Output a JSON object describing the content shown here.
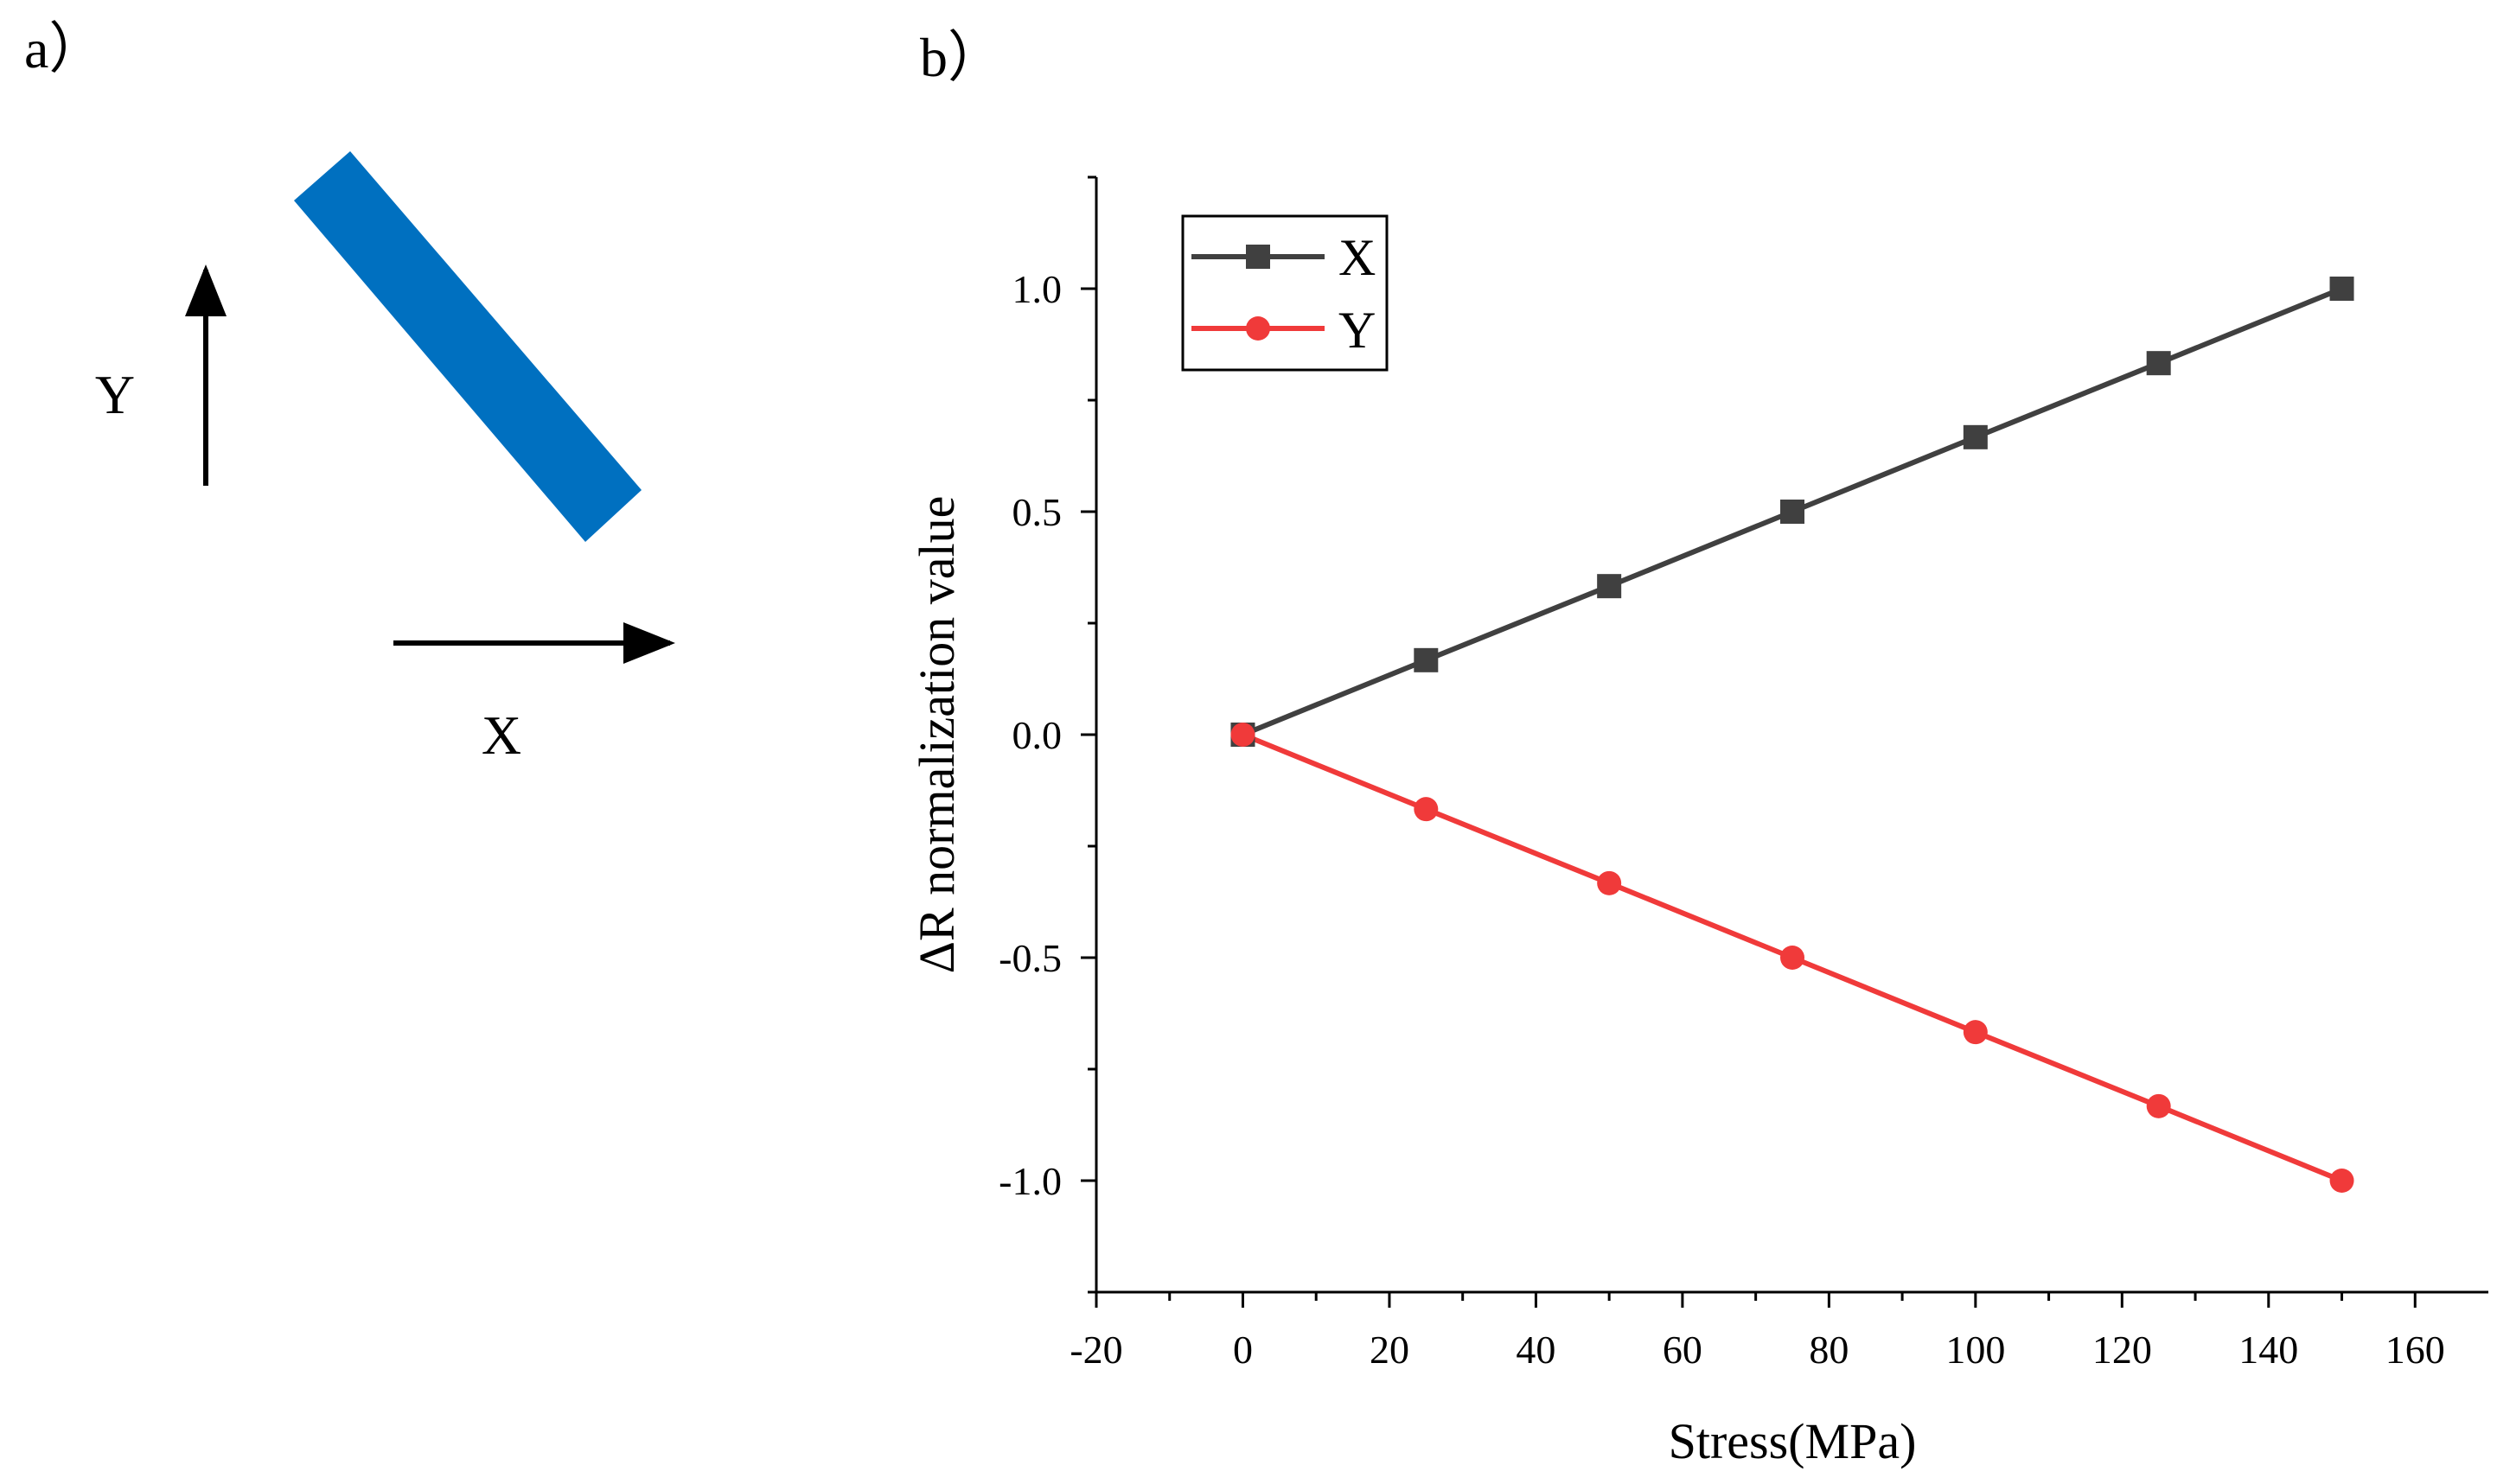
{
  "panel_a": {
    "label": "a）",
    "x_axis_label": "X",
    "y_axis_label": "Y",
    "strip_color": "#0070C0"
  },
  "panel_b": {
    "label": "b）"
  },
  "chart_data": {
    "type": "line",
    "title": "",
    "xlabel": "Stress(MPa)",
    "ylabel": "ΔR normalization value",
    "xlim": [
      -20,
      170
    ],
    "ylim": [
      -1.25,
      1.25
    ],
    "x_ticks": [
      -20,
      0,
      20,
      40,
      60,
      80,
      100,
      120,
      140,
      160
    ],
    "x_tick_labels": [
      "-20",
      "0",
      "20",
      "40",
      "60",
      "80",
      "100",
      "120",
      "140",
      "160"
    ],
    "y_ticks": [
      1.0,
      0.5,
      0.0,
      -0.5,
      -1.0
    ],
    "y_tick_labels": [
      "1.0",
      "0.5",
      "0.0",
      "-0.5",
      "-1.0"
    ],
    "grid": false,
    "legend_position": "top-left",
    "x": [
      0,
      25,
      50,
      75,
      100,
      125,
      150
    ],
    "series": [
      {
        "name": "X",
        "marker": "square",
        "color": "#404040",
        "values": [
          0,
          0.167,
          0.333,
          0.5,
          0.667,
          0.833,
          1.0
        ]
      },
      {
        "name": "Y",
        "marker": "circle",
        "color": "#F03A3A",
        "values": [
          0,
          -0.167,
          -0.333,
          -0.5,
          -0.667,
          -0.833,
          -1.0
        ]
      }
    ]
  }
}
